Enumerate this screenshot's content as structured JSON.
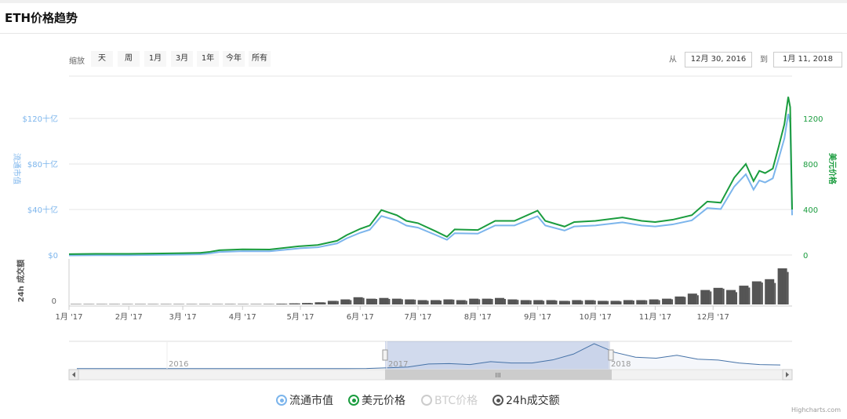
{
  "title": "ETH价格趋势",
  "zoom": {
    "label": "缩放",
    "buttons": [
      "天",
      "周",
      "1月",
      "3月",
      "1年",
      "今年",
      "所有"
    ]
  },
  "range": {
    "from_label": "从",
    "from": "12月 30, 2016",
    "to_label": "到",
    "to": "1月 11, 2018"
  },
  "colors": {
    "market_cap": "#7cb5ec",
    "price": "#1a9c3e",
    "volume": "#555555",
    "btc_disabled": "#cccccc"
  },
  "chart_data": {
    "type": "line",
    "left_axis": {
      "title": "流通市值",
      "ticks": [
        "$0",
        "$40十亿",
        "$80十亿",
        "$120十亿"
      ],
      "values": [
        0,
        40,
        80,
        120
      ]
    },
    "right_axis": {
      "title": "美元价格",
      "ticks": [
        "0",
        "400",
        "800",
        "1200"
      ],
      "values": [
        0,
        400,
        800,
        1200
      ]
    },
    "volume_axis": {
      "title": "24h 成交額",
      "ticks": [
        "0"
      ]
    },
    "x_ticks": [
      "1月 '17",
      "2月 '17",
      "3月 '17",
      "4月 '17",
      "5月 '17",
      "6月 '17",
      "7月 '17",
      "8月 '17",
      "9月 '17",
      "10月 '17",
      "11月 '17",
      "12月 '17"
    ],
    "x_range": [
      "2017-01-01",
      "2018-01-11"
    ],
    "price": [
      [
        "2017-01-01",
        8
      ],
      [
        "2017-01-15",
        10
      ],
      [
        "2017-02-01",
        10.7
      ],
      [
        "2017-02-15",
        12.8
      ],
      [
        "2017-03-01",
        16
      ],
      [
        "2017-03-10",
        19
      ],
      [
        "2017-03-15",
        28
      ],
      [
        "2017-03-20",
        42
      ],
      [
        "2017-04-01",
        50
      ],
      [
        "2017-04-15",
        48
      ],
      [
        "2017-05-01",
        78
      ],
      [
        "2017-05-10",
        88
      ],
      [
        "2017-05-20",
        125
      ],
      [
        "2017-05-25",
        175
      ],
      [
        "2017-06-01",
        230
      ],
      [
        "2017-06-06",
        260
      ],
      [
        "2017-06-12",
        395
      ],
      [
        "2017-06-20",
        350
      ],
      [
        "2017-06-25",
        300
      ],
      [
        "2017-07-01",
        280
      ],
      [
        "2017-07-10",
        210
      ],
      [
        "2017-07-16",
        160
      ],
      [
        "2017-07-20",
        225
      ],
      [
        "2017-08-01",
        220
      ],
      [
        "2017-08-10",
        300
      ],
      [
        "2017-08-20",
        300
      ],
      [
        "2017-09-01",
        390
      ],
      [
        "2017-09-05",
        300
      ],
      [
        "2017-09-15",
        250
      ],
      [
        "2017-09-20",
        290
      ],
      [
        "2017-10-01",
        300
      ],
      [
        "2017-10-15",
        330
      ],
      [
        "2017-10-25",
        300
      ],
      [
        "2017-11-01",
        290
      ],
      [
        "2017-11-10",
        310
      ],
      [
        "2017-11-20",
        350
      ],
      [
        "2017-11-28",
        470
      ],
      [
        "2017-12-05",
        460
      ],
      [
        "2017-12-12",
        680
      ],
      [
        "2017-12-18",
        800
      ],
      [
        "2017-12-22",
        650
      ],
      [
        "2017-12-25",
        740
      ],
      [
        "2017-12-28",
        720
      ],
      [
        "2018-01-01",
        760
      ],
      [
        "2018-01-04",
        950
      ],
      [
        "2018-01-07",
        1150
      ],
      [
        "2018-01-09",
        1390
      ],
      [
        "2018-01-10",
        1300
      ],
      [
        "2018-01-11",
        400
      ]
    ],
    "market_cap_billions": [
      0.7,
      0.9,
      0.9,
      1.1,
      1.4,
      1.7,
      2.5,
      3.7,
      4.4,
      4.3,
      7,
      7.8,
      11.2,
      15.7,
      20.6,
      23.3,
      35.3,
      31.3,
      26.9,
      25.1,
      18.8,
      14.4,
      20.2,
      19.8,
      27,
      27,
      35.1,
      27,
      22.5,
      26.1,
      27,
      29.7,
      27,
      26.1,
      27.9,
      31.5,
      42.3,
      41.4,
      61.2,
      72,
      58.5,
      66.6,
      64.8,
      68.4,
      85.5,
      103.5,
      125.1,
      117,
      36
    ],
    "volume_weekly": [
      0.01,
      0.01,
      0.01,
      0.01,
      0.01,
      0.01,
      0.01,
      0.01,
      0.02,
      0.03,
      0.04,
      0.05,
      0.06,
      0.05,
      0.05,
      0.06,
      0.1,
      0.15,
      0.2,
      0.3,
      0.5,
      0.7,
      1.0,
      0.8,
      0.9,
      0.8,
      0.7,
      0.6,
      0.6,
      0.7,
      0.6,
      0.8,
      0.8,
      0.9,
      0.7,
      0.6,
      0.6,
      0.6,
      0.5,
      0.6,
      0.6,
      0.5,
      0.5,
      0.6,
      0.6,
      0.7,
      0.8,
      1.1,
      1.5,
      2.0,
      2.3,
      2.0,
      2.6,
      3.2,
      3.5,
      5.0
    ]
  },
  "navigator": {
    "labels": [
      "2016",
      "2017",
      "2018"
    ],
    "values": [
      10,
      10,
      10,
      10,
      10,
      10,
      10,
      10,
      10,
      10,
      10,
      10,
      10,
      12,
      16,
      50,
      90,
      250,
      270,
      220,
      370,
      300,
      300,
      460,
      760,
      1300,
      850,
      600,
      550,
      700,
      500,
      450,
      300,
      220,
      200
    ]
  },
  "legend": [
    {
      "label": "流通市值"
    },
    {
      "label": "美元价格"
    },
    {
      "label": "BTC价格"
    },
    {
      "label": "24h成交额"
    }
  ],
  "credit": "Highcharts.com"
}
